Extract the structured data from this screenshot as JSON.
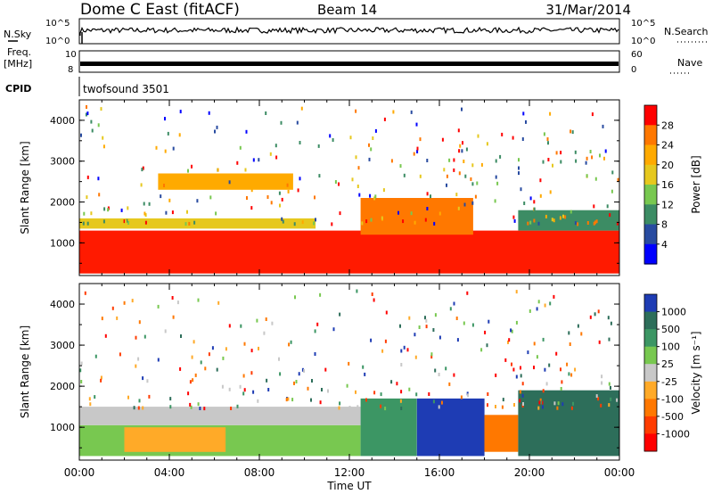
{
  "header": {
    "title": "Dome C East (fitACF)",
    "beam": "Beam 14",
    "date": "31/Mar/2014"
  },
  "status_panels": {
    "nsky_label": "N.Sky",
    "nsky_ticks": [
      "10^5",
      "10^0"
    ],
    "nsearch_label": "N.Search",
    "nsearch_ticks": [
      "10^5",
      "10^0"
    ],
    "freq_label_1": "Freq.",
    "freq_label_2": "[MHz]",
    "freq_ticks": [
      "10",
      "8"
    ],
    "nave_label": "Nave",
    "nave_ticks": [
      "60",
      "0"
    ],
    "cpid_label": "CPID",
    "cpid_value": "twofsound 3501"
  },
  "chart_data": [
    {
      "type": "heatmap",
      "name": "power-panel",
      "ylabel": "Slant Range [km]",
      "ylim": [
        200,
        4500
      ],
      "yticks": [
        1000,
        2000,
        3000,
        4000
      ],
      "xlim_hours": [
        0,
        24
      ],
      "colorbar_label": "Power [dB]",
      "colorbar_ticks": [
        "28",
        "24",
        "20",
        "16",
        "12",
        "8",
        "4"
      ],
      "colorbar_colors": [
        "#ff0000",
        "#ff7800",
        "#ffaa00",
        "#e6c81e",
        "#78c850",
        "#3c8c64",
        "#284ba0",
        "#0000ff"
      ],
      "bands": [
        {
          "h0": 0.0,
          "h1": 24.0,
          "r0": 250,
          "r1": 1300,
          "color": "#ff1a00"
        },
        {
          "h0": 0.0,
          "h1": 10.5,
          "r0": 1350,
          "r1": 1600,
          "color": "#e6c81e"
        },
        {
          "h0": 3.5,
          "h1": 9.5,
          "r0": 2300,
          "r1": 2700,
          "color": "#ffaa00"
        },
        {
          "h0": 12.5,
          "h1": 17.5,
          "r0": 1200,
          "r1": 2100,
          "color": "#ff7800"
        },
        {
          "h0": 19.5,
          "h1": 24.0,
          "r0": 1300,
          "r1": 1800,
          "color": "#3c8c64"
        }
      ]
    },
    {
      "type": "heatmap",
      "name": "velocity-panel",
      "ylabel": "Slant Range [km]",
      "xlabel": "Time UT",
      "ylim": [
        200,
        4500
      ],
      "yticks": [
        1000,
        2000,
        3000,
        4000
      ],
      "xlim_hours": [
        0,
        24
      ],
      "xticks": [
        "00:00",
        "04:00",
        "08:00",
        "12:00",
        "16:00",
        "20:00",
        "00:00"
      ],
      "colorbar_label": "Velocity [m s⁻¹]",
      "colorbar_ticks": [
        "1000",
        "500",
        "100",
        "25",
        "-25",
        "-100",
        "-500",
        "-1000"
      ],
      "colorbar_colors": [
        "#1e3cb4",
        "#2d6e5a",
        "#3c9664",
        "#78c850",
        "#c8c8c8",
        "#ffaa28",
        "#ff7800",
        "#ff3c00",
        "#ff0000"
      ],
      "bands": [
        {
          "h0": 0.0,
          "h1": 12.5,
          "r0": 1050,
          "r1": 1500,
          "color": "#c8c8c8"
        },
        {
          "h0": 0.0,
          "h1": 12.5,
          "r0": 300,
          "r1": 1050,
          "color": "#78c850"
        },
        {
          "h0": 2.0,
          "h1": 6.5,
          "r0": 400,
          "r1": 1000,
          "color": "#ffaa28"
        },
        {
          "h0": 12.5,
          "h1": 15.0,
          "r0": 300,
          "r1": 1700,
          "color": "#3c9664"
        },
        {
          "h0": 15.0,
          "h1": 18.0,
          "r0": 300,
          "r1": 1700,
          "color": "#1e3cb4"
        },
        {
          "h0": 18.0,
          "h1": 19.5,
          "r0": 400,
          "r1": 1300,
          "color": "#ff7800"
        },
        {
          "h0": 19.5,
          "h1": 24.0,
          "r0": 300,
          "r1": 1900,
          "color": "#2d6e5a"
        }
      ]
    }
  ]
}
